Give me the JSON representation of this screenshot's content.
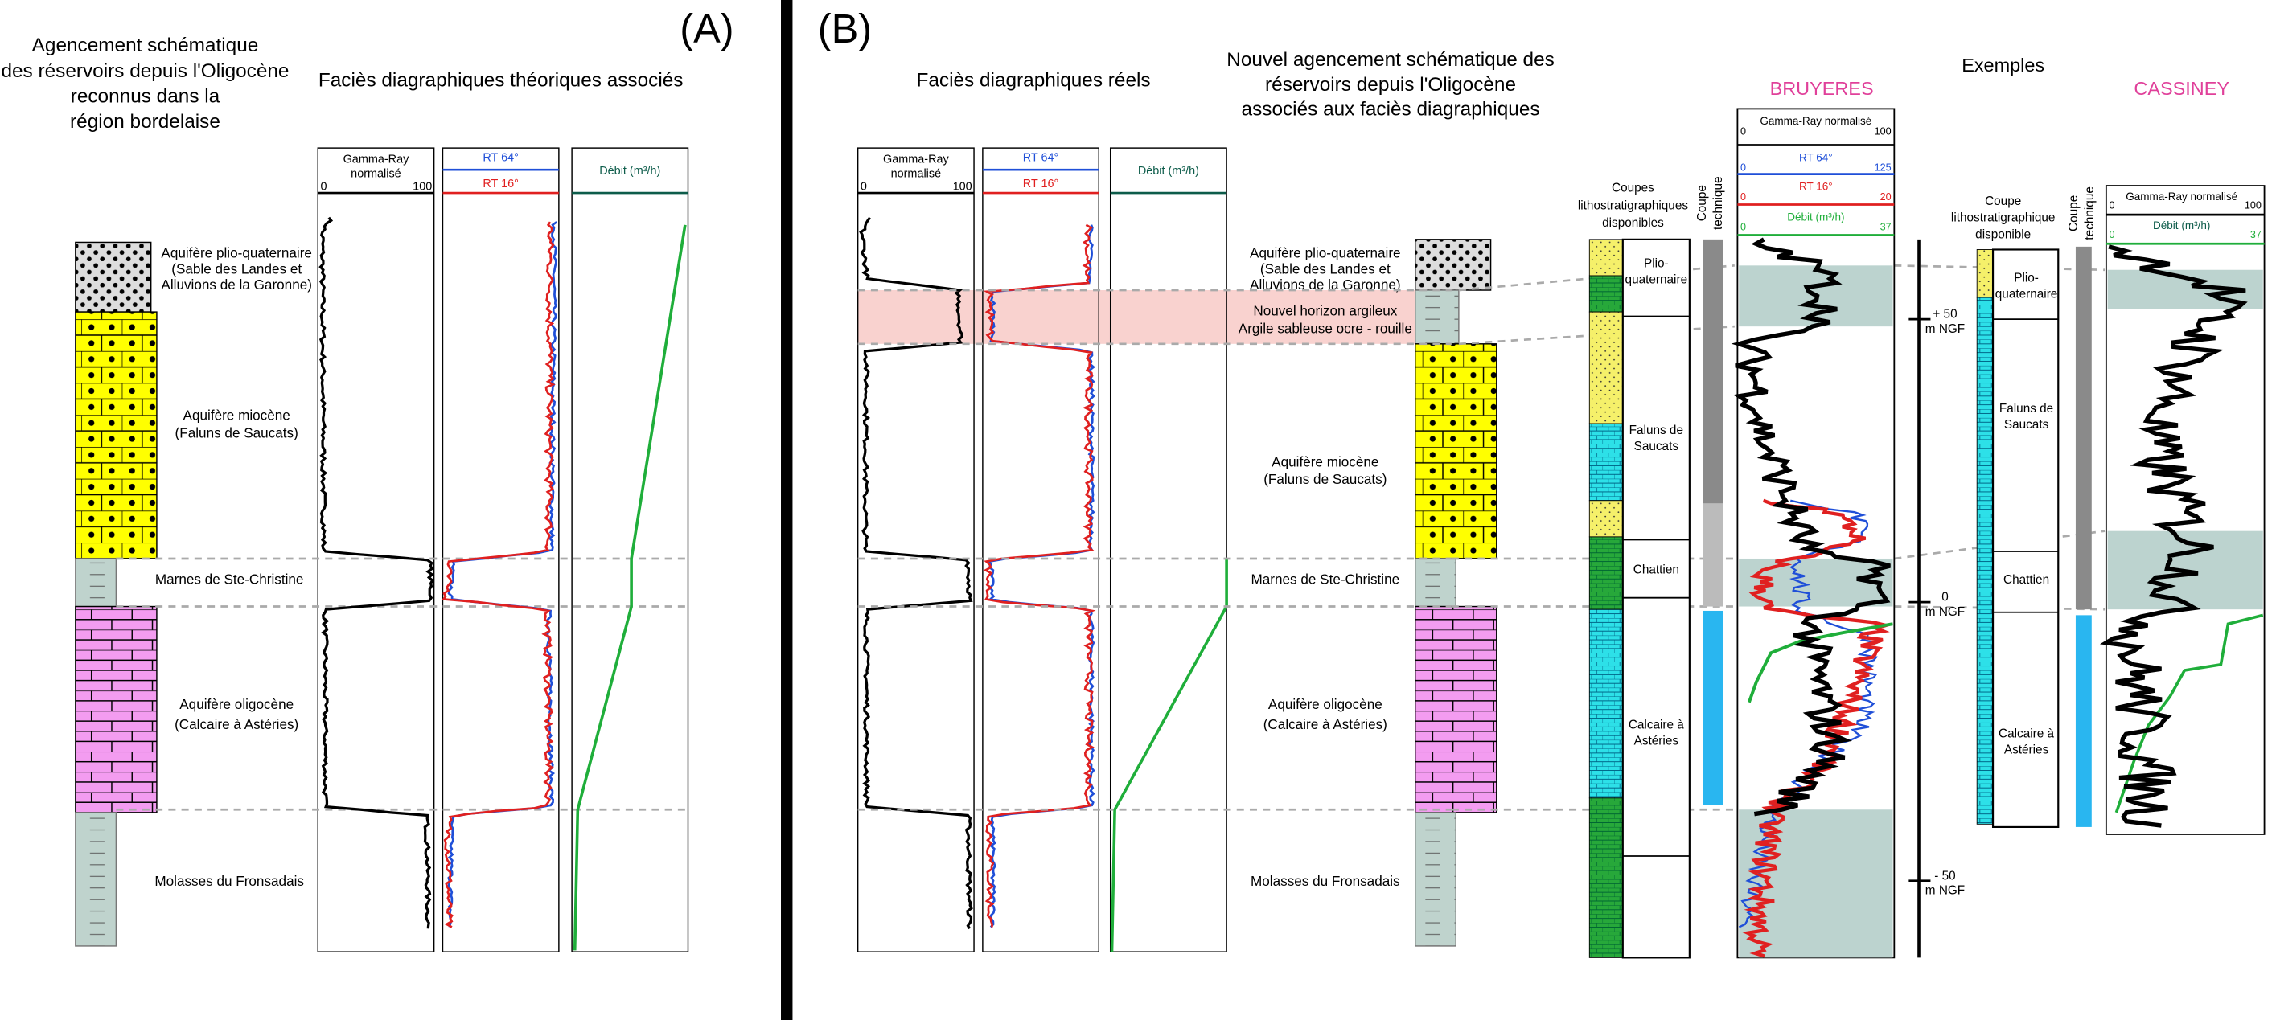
{
  "panel_a": {
    "label": "(A)",
    "title": [
      "Agencement schématique",
      "des réservoirs depuis l'Oligocène",
      "reconnus dans la",
      "région bordelaise"
    ],
    "subtitle": "Faciès diagraphiques théoriques associés",
    "gamma_ray": [
      "Gamma-Ray",
      "normalisé"
    ],
    "gamma_min": "0",
    "gamma_max": "100",
    "rt64": "RT 64°",
    "rt16": "RT 16°",
    "debit": "Débit (m³/h)",
    "units": [
      [
        "Aquifère plio-quaternaire",
        "(Sable des Landes et",
        "Alluvions de la Garonne)"
      ],
      [
        "Aquifère miocène",
        "(Faluns de Saucats)"
      ],
      [
        "Marnes de Ste-Christine"
      ],
      [
        "Aquifère oligocène",
        "(Calcaire à Astéries)"
      ],
      [
        "Molasses du Fronsadais"
      ]
    ]
  },
  "panel_b": {
    "label": "(B)",
    "subtitle": "Faciès diagraphiques réels",
    "title": [
      "Nouvel agencement schématique des",
      "réservoirs depuis l'Oligocène",
      "associés aux faciès diagraphiques"
    ],
    "gamma_ray": [
      "Gamma-Ray",
      "normalisé"
    ],
    "gamma_min": "0",
    "gamma_max": "100",
    "rt64": "RT 64°",
    "rt16": "RT 16°",
    "debit": "Débit (m³/h)",
    "units": [
      [
        "Aquifère plio-quaternaire",
        "(Sable des Landes et",
        "Alluvions de la Garonne)"
      ],
      [
        "Nouvel horizon argileux",
        "Argile sableuse ocre - rouille"
      ],
      [
        "Aquifère miocène",
        "(Faluns de Saucats)"
      ],
      [
        "Marnes de Ste-Christine"
      ],
      [
        "Aquifère oligocène",
        "(Calcaire à Astéries)"
      ],
      [
        "Molasses du Fronsadais"
      ]
    ]
  },
  "examples": {
    "title": "Exemples",
    "bruyeres": {
      "name": "BRUYERES",
      "litho_label": [
        "Coupes",
        "lithostratigraphiques",
        "disponibles"
      ],
      "tech_label": [
        "Coupe",
        "technique"
      ],
      "layers": [
        [
          "Plio-",
          "quaternaire"
        ],
        [
          "Faluns de",
          "Saucats"
        ],
        [
          "Chattien"
        ],
        [
          "Calcaire à",
          "Astéries"
        ]
      ],
      "logs": [
        {
          "name": "Gamma-Ray normalisé",
          "min": "0",
          "max": "100"
        },
        {
          "name": "RT 64°",
          "min": "0",
          "max": "125"
        },
        {
          "name": "RT 16°",
          "min": "0",
          "max": "20"
        },
        {
          "name": "Débit (m³/h)",
          "min": "0",
          "max": "37"
        }
      ],
      "depths": [
        [
          "+ 50",
          "m NGF"
        ],
        [
          "0",
          "m NGF"
        ],
        [
          "- 50",
          "m NGF"
        ]
      ]
    },
    "cassiney": {
      "name": "CASSINEY",
      "litho_label": [
        "Coupe",
        "lithostratigraphique",
        "disponible"
      ],
      "tech_label": [
        "Coupe",
        "technique"
      ],
      "layers": [
        [
          "Plio-",
          "quaternaire"
        ],
        [
          "Faluns de",
          "Saucats"
        ],
        [
          "Chattien"
        ],
        [
          "Calcaire à",
          "Astéries"
        ]
      ],
      "logs": [
        {
          "name": "Gamma-Ray normalisé",
          "min": "0",
          "max": "100"
        },
        {
          "name": "Débit (m³/h)",
          "min": "0",
          "max": "37"
        }
      ]
    }
  }
}
